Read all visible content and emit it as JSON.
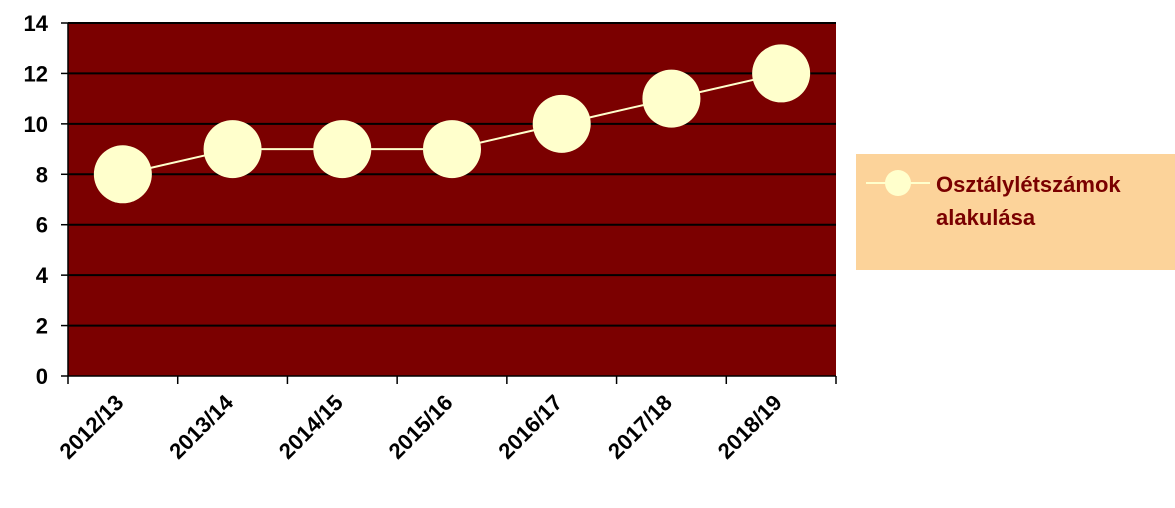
{
  "chart_data": {
    "type": "line",
    "title": "",
    "xlabel": "",
    "ylabel": "",
    "categories": [
      "2012/13",
      "2013/14",
      "2014/15",
      "2015/16",
      "2016/17",
      "2017/18",
      "2018/19"
    ],
    "series": [
      {
        "name": "Osztálylétszámok alakulása",
        "values": [
          8,
          9,
          9,
          9,
          10,
          11,
          12
        ]
      }
    ],
    "ylim": [
      0,
      14
    ],
    "yticks": [
      "0",
      "2",
      "4",
      "6",
      "8",
      "10",
      "12",
      "14"
    ],
    "grid": true,
    "legend_position": "right",
    "colors": {
      "plot_background": "#7b0000",
      "line": "#ffffcc",
      "marker": "#ffffcc",
      "legend_background": "#fcd39a",
      "legend_text": "#7a0000"
    }
  }
}
